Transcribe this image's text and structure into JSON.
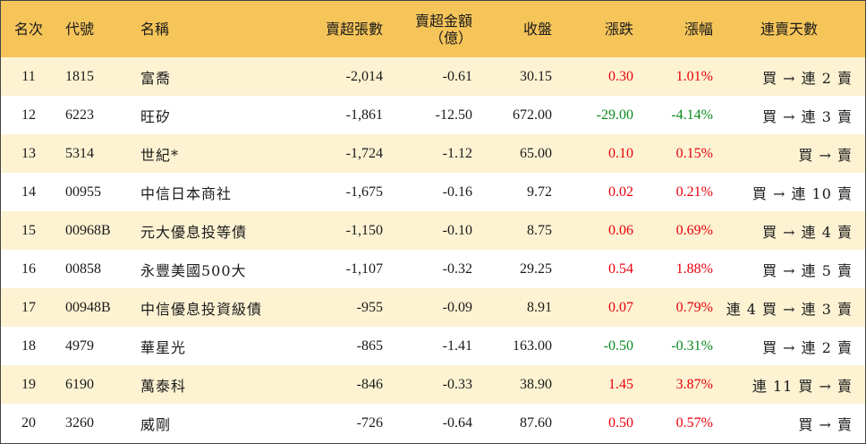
{
  "headers": {
    "rank": "名次",
    "code": "代號",
    "name": "名稱",
    "net_sell_shares": "賣超張數",
    "net_sell_amount_line1": "賣超金額",
    "net_sell_amount_line2": "（億）",
    "close": "收盤",
    "change": "漲跌",
    "change_pct": "漲幅",
    "streak": "連賣天數"
  },
  "rows": [
    {
      "rank": "11",
      "code": "1815",
      "name": "富喬",
      "shares": "-2,014",
      "amount": "-0.61",
      "close": "30.15",
      "change": "0.30",
      "pct": "1.01%",
      "dir": "up",
      "streak": "買 → 連 2 賣"
    },
    {
      "rank": "12",
      "code": "6223",
      "name": "旺矽",
      "shares": "-1,861",
      "amount": "-12.50",
      "close": "672.00",
      "change": "-29.00",
      "pct": "-4.14%",
      "dir": "down",
      "streak": "買 → 連 3 賣"
    },
    {
      "rank": "13",
      "code": "5314",
      "name": "世紀*",
      "shares": "-1,724",
      "amount": "-1.12",
      "close": "65.00",
      "change": "0.10",
      "pct": "0.15%",
      "dir": "up",
      "streak": "買 → 賣"
    },
    {
      "rank": "14",
      "code": "00955",
      "name": "中信日本商社",
      "shares": "-1,675",
      "amount": "-0.16",
      "close": "9.72",
      "change": "0.02",
      "pct": "0.21%",
      "dir": "up",
      "streak": "買 → 連 10 賣"
    },
    {
      "rank": "15",
      "code": "00968B",
      "name": "元大優息投等債",
      "shares": "-1,150",
      "amount": "-0.10",
      "close": "8.75",
      "change": "0.06",
      "pct": "0.69%",
      "dir": "up",
      "streak": "買 → 連 4 賣"
    },
    {
      "rank": "16",
      "code": "00858",
      "name": "永豐美國500大",
      "shares": "-1,107",
      "amount": "-0.32",
      "close": "29.25",
      "change": "0.54",
      "pct": "1.88%",
      "dir": "up",
      "streak": "買 → 連 5 賣"
    },
    {
      "rank": "17",
      "code": "00948B",
      "name": "中信優息投資級債",
      "shares": "-955",
      "amount": "-0.09",
      "close": "8.91",
      "change": "0.07",
      "pct": "0.79%",
      "dir": "up",
      "streak": "連 4 買 → 連 3 賣"
    },
    {
      "rank": "18",
      "code": "4979",
      "name": "華星光",
      "shares": "-865",
      "amount": "-1.41",
      "close": "163.00",
      "change": "-0.50",
      "pct": "-0.31%",
      "dir": "down",
      "streak": "買 → 連 2 賣"
    },
    {
      "rank": "19",
      "code": "6190",
      "name": "萬泰科",
      "shares": "-846",
      "amount": "-0.33",
      "close": "38.90",
      "change": "1.45",
      "pct": "3.87%",
      "dir": "up",
      "streak": "連 11 買 → 賣"
    },
    {
      "rank": "20",
      "code": "3260",
      "name": "威剛",
      "shares": "-726",
      "amount": "-0.64",
      "close": "87.60",
      "change": "0.50",
      "pct": "0.57%",
      "dir": "up",
      "streak": "買 → 賣"
    }
  ],
  "colors": {
    "header_bg": "#f6c55a",
    "odd_row_bg": "#fdf3d3",
    "up": "#e8000b",
    "down": "#0a8a1f"
  }
}
